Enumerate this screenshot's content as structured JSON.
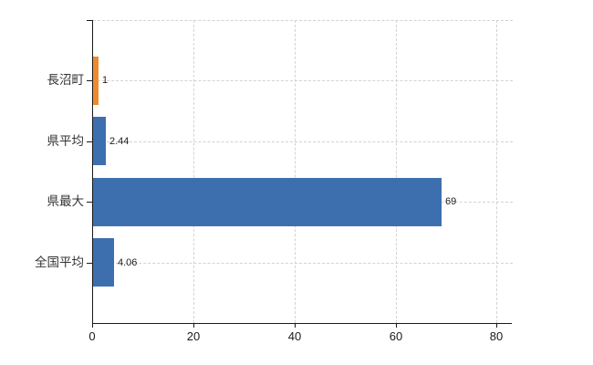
{
  "chart_data": {
    "type": "bar",
    "orientation": "horizontal",
    "title": "",
    "categories": [
      "長沼町",
      "県平均",
      "県最大",
      "全国平均"
    ],
    "values": [
      1,
      2.44,
      69,
      4.06
    ],
    "value_labels": [
      "1",
      "2.44",
      "69",
      "4.06"
    ],
    "series": [
      {
        "name": "municipal-stat-comparison",
        "values": [
          1,
          2.44,
          69,
          4.06
        ]
      }
    ],
    "bar_colors": [
      "#EE8A2E",
      "#3D6FAF",
      "#3D6FAF",
      "#3D6FAF"
    ],
    "highlight_color": "#EE8A2E",
    "base_color": "#3D6FAF",
    "x_ticks": [
      0,
      20,
      40,
      60,
      80
    ],
    "x_tick_labels": [
      "0",
      "20",
      "40",
      "60",
      "80"
    ],
    "xlim": [
      0,
      83
    ],
    "xlabel": "",
    "ylabel": "",
    "grid": true,
    "grid_color": "#d2d2d2",
    "axis_color": "#1a1a1a",
    "text_color": "#333333",
    "background": "#ffffff",
    "legend": false
  }
}
